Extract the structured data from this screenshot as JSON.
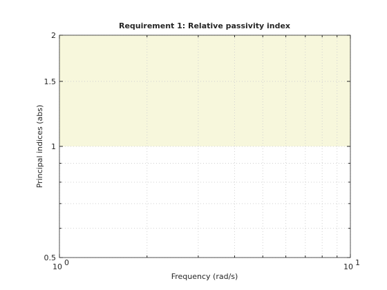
{
  "chart_data": {
    "type": "line",
    "title": "Requirement 1: Relative passivity index",
    "x_label": "Frequency (rad/s)",
    "y_label": "Principal indices (abs)",
    "series": [],
    "xscale": "log",
    "yscale": "log",
    "xlim": [
      1,
      10
    ],
    "ylim": [
      0.5,
      2
    ],
    "xticks": [
      {
        "value": 1,
        "label": "10",
        "exponent": "0"
      },
      {
        "value": 10,
        "label": "10",
        "exponent": "1"
      }
    ],
    "yticks": [
      0.5,
      1,
      1.5,
      2
    ],
    "grid": true,
    "minor_grid": true,
    "shaded_region": {
      "from": 1,
      "to": 2,
      "color": "#f7f7dc"
    }
  }
}
